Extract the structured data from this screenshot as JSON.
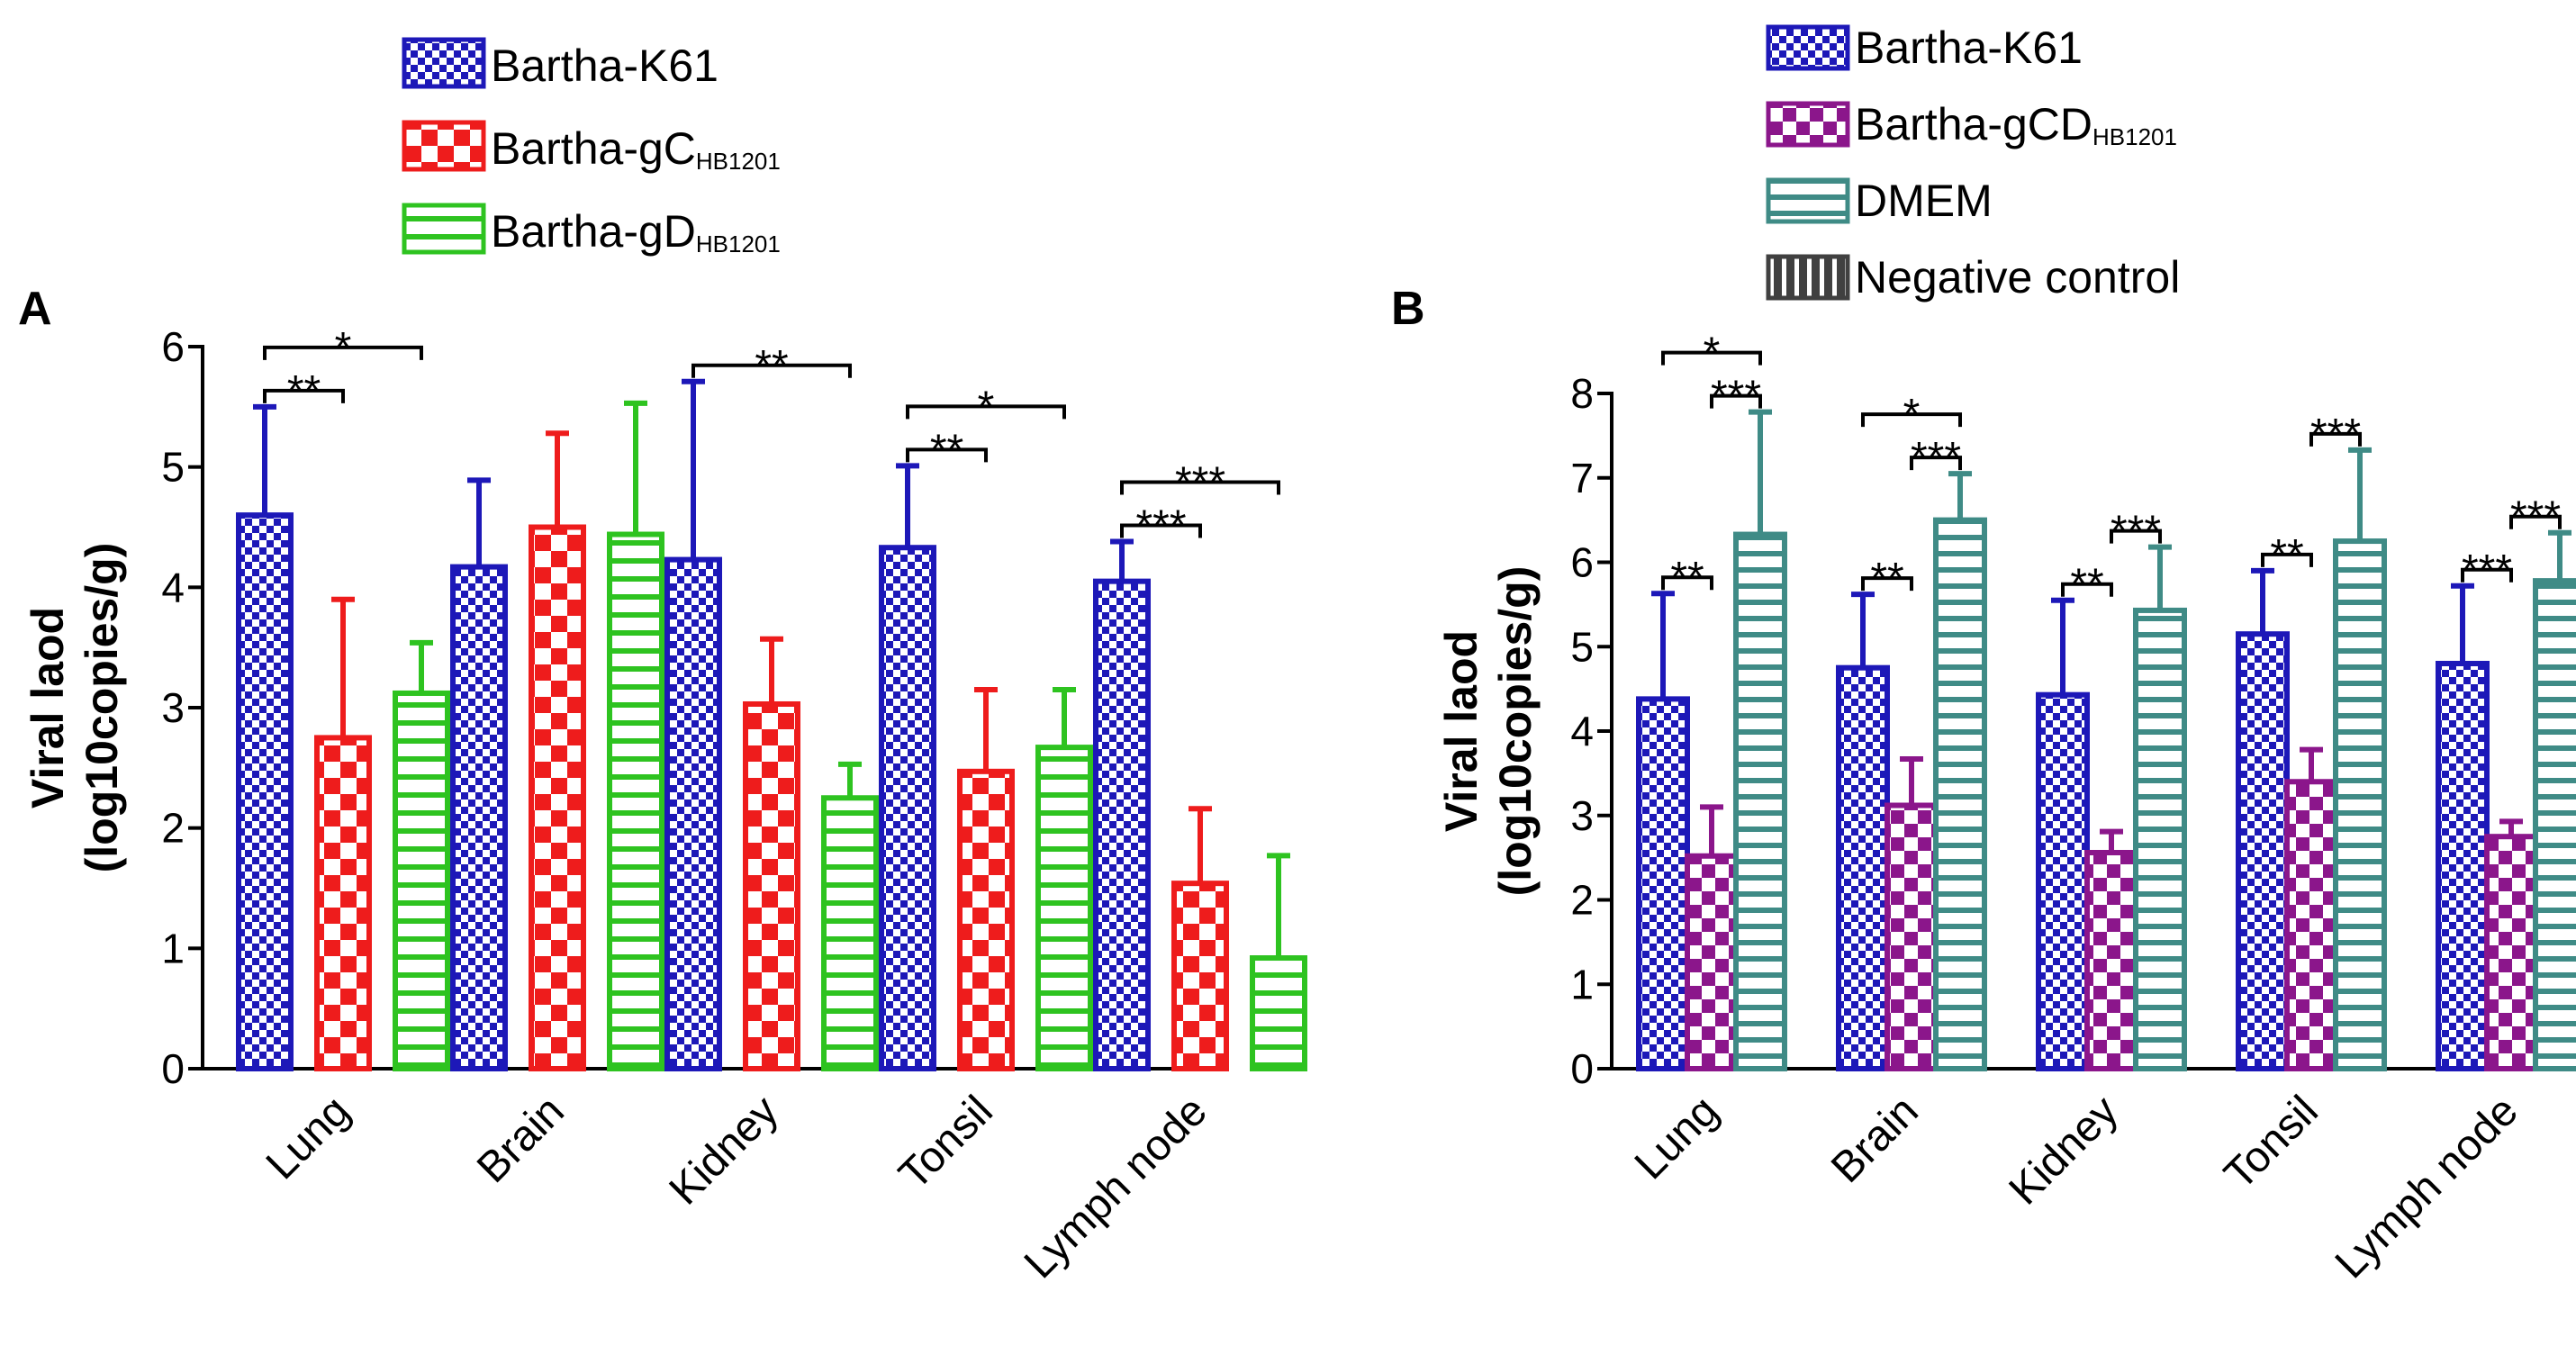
{
  "chart_data": [
    {
      "type": "bar",
      "panel": "A",
      "ylabel_lines": [
        "Viral laod",
        "(log10copies/g)"
      ],
      "ylim": [
        0,
        6
      ],
      "yticks": [
        "0",
        "1",
        "2",
        "3",
        "4",
        "5",
        "6"
      ],
      "categories": [
        "Lung",
        "Brain",
        "Kidney",
        "Tonsil",
        "Lymph node"
      ],
      "series": [
        {
          "name": "Bartha-K61",
          "name_main": "Bartha-K61",
          "name_sub": "",
          "color": "#1d18b8",
          "pattern": "checker-small",
          "values": [
            4.6,
            4.17,
            4.23,
            4.33,
            4.05
          ],
          "errors": [
            0.9,
            0.72,
            1.48,
            0.68,
            0.33
          ]
        },
        {
          "name": "Bartha-gC HB1201",
          "name_main": "Bartha-gC",
          "name_sub": "HB1201",
          "color": "#ee1c1c",
          "pattern": "checker-large",
          "values": [
            2.75,
            4.5,
            3.03,
            2.47,
            1.54
          ],
          "errors": [
            1.15,
            0.78,
            0.54,
            0.68,
            0.62
          ]
        },
        {
          "name": "Bartha-gD HB1201",
          "name_main": "Bartha-gD",
          "name_sub": "HB1201",
          "color": "#2ec320",
          "pattern": "hstripes",
          "values": [
            3.12,
            4.44,
            2.25,
            2.67,
            0.92
          ],
          "errors": [
            0.42,
            1.09,
            0.28,
            0.48,
            0.85
          ]
        }
      ],
      "significance": [
        {
          "category": 0,
          "from": 0,
          "to": 1,
          "label": "**"
        },
        {
          "category": 0,
          "from": 0,
          "to": 2,
          "label": "*"
        },
        {
          "category": 2,
          "from": 0,
          "to": 2,
          "label": "**"
        },
        {
          "category": 3,
          "from": 0,
          "to": 1,
          "label": "**"
        },
        {
          "category": 3,
          "from": 0,
          "to": 2,
          "label": "*"
        },
        {
          "category": 4,
          "from": 0,
          "to": 1,
          "label": "***"
        },
        {
          "category": 4,
          "from": 0,
          "to": 2,
          "label": "***"
        }
      ]
    },
    {
      "type": "bar",
      "panel": "B",
      "ylabel_lines": [
        "Viral laod",
        "(log10copies/g)"
      ],
      "ylim": [
        0,
        8
      ],
      "yticks": [
        "0",
        "1",
        "2",
        "3",
        "4",
        "5",
        "6",
        "7",
        "8"
      ],
      "categories": [
        "Lung",
        "Brain",
        "Kidney",
        "Tonsil",
        "Lymph node"
      ],
      "series": [
        {
          "name": "Bartha-K61",
          "name_main": "Bartha-K61",
          "name_sub": "",
          "color": "#1d18b8",
          "pattern": "checker-small",
          "values": [
            4.38,
            4.75,
            4.43,
            5.15,
            4.8
          ],
          "errors": [
            1.25,
            0.87,
            1.12,
            0.75,
            0.92
          ]
        },
        {
          "name": "Bartha-gCD HB1201",
          "name_main": "Bartha-gCD",
          "name_sub": "HB1201",
          "color": "#8b168b",
          "pattern": "checker-large",
          "values": [
            2.52,
            3.12,
            2.56,
            3.4,
            2.75
          ],
          "errors": [
            0.58,
            0.55,
            0.25,
            0.38,
            0.18
          ]
        },
        {
          "name": "DMEM",
          "name_main": "DMEM",
          "name_sub": "",
          "color": "#3f8b86",
          "pattern": "hstripes",
          "values": [
            6.33,
            6.5,
            5.43,
            6.25,
            5.78
          ],
          "errors": [
            1.45,
            0.55,
            0.75,
            1.08,
            0.57
          ]
        },
        {
          "name": "Negative control",
          "name_main": "Negative control",
          "name_sub": "",
          "color": "#404040",
          "pattern": "vstripes",
          "values": [
            0,
            0,
            0,
            0,
            0
          ],
          "errors": [
            0,
            0,
            0,
            0,
            0
          ],
          "legend_only": true
        }
      ],
      "significance": [
        {
          "category": 0,
          "from": 0,
          "to": 1,
          "label": "**"
        },
        {
          "category": 0,
          "from": 1,
          "to": 2,
          "label": "***"
        },
        {
          "category": 0,
          "from": 0,
          "to": 2,
          "label": "*"
        },
        {
          "category": 1,
          "from": 0,
          "to": 1,
          "label": "**"
        },
        {
          "category": 1,
          "from": 1,
          "to": 2,
          "label": "***"
        },
        {
          "category": 1,
          "from": 0,
          "to": 2,
          "label": "*"
        },
        {
          "category": 2,
          "from": 0,
          "to": 1,
          "label": "**"
        },
        {
          "category": 2,
          "from": 1,
          "to": 2,
          "label": "***"
        },
        {
          "category": 3,
          "from": 0,
          "to": 1,
          "label": "**"
        },
        {
          "category": 3,
          "from": 1,
          "to": 2,
          "label": "***"
        },
        {
          "category": 4,
          "from": 0,
          "to": 1,
          "label": "***"
        },
        {
          "category": 4,
          "from": 1,
          "to": 2,
          "label": "***"
        }
      ]
    }
  ]
}
